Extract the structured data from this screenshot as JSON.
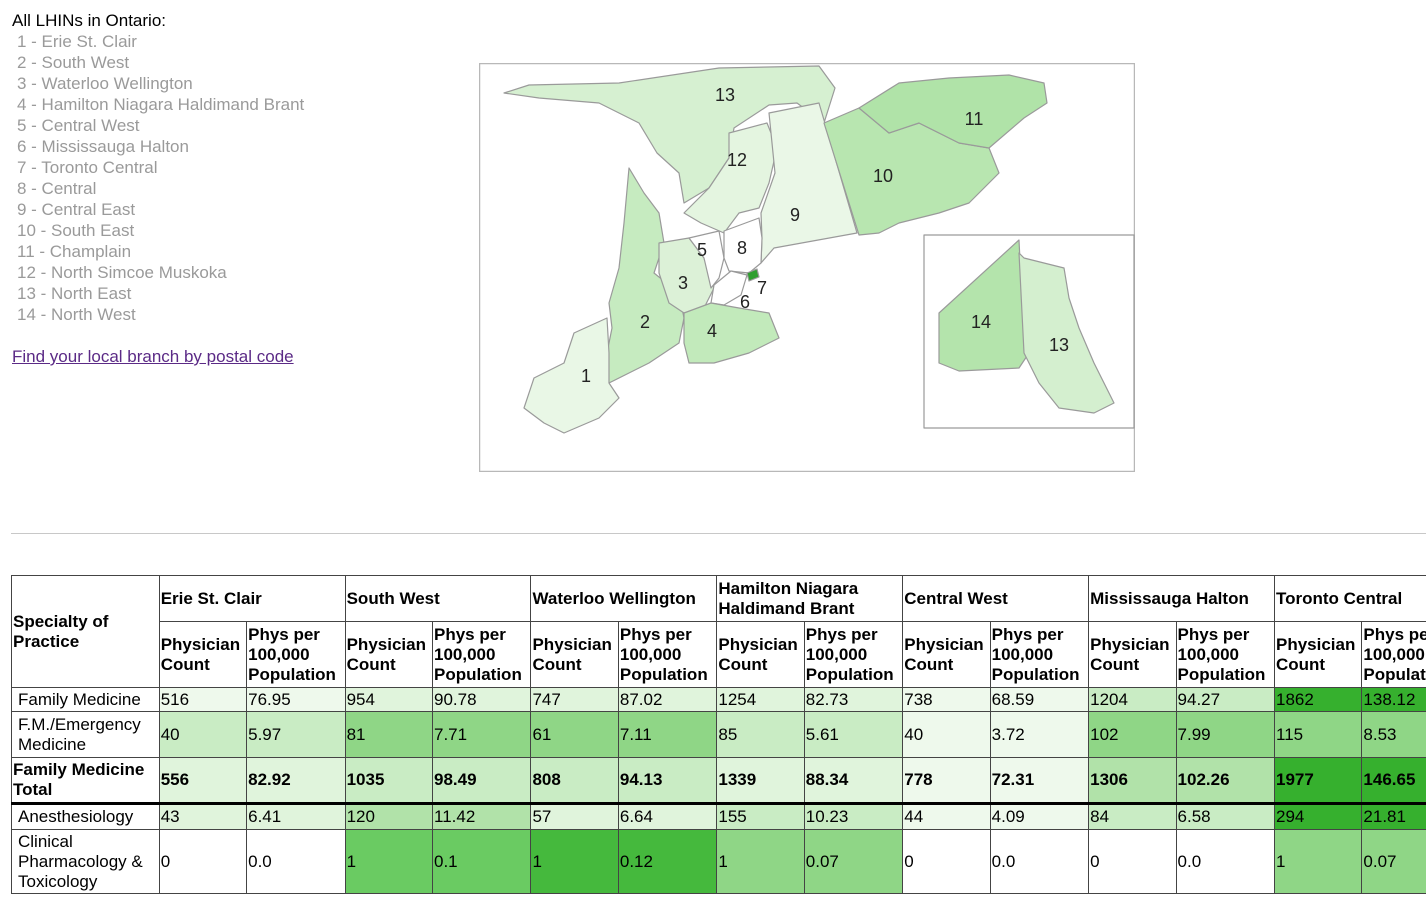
{
  "legend": {
    "title": "All LHINs in Ontario:",
    "items": [
      "1 - Erie St. Clair",
      "2 - South West",
      "3 - Waterloo Wellington",
      "4 - Hamilton Niagara Haldimand Brant",
      "5 - Central West",
      "6 - Mississauga Halton",
      "7 - Toronto Central",
      "8 - Central",
      "9 - Central East",
      "10 - South East",
      "11 - Champlain",
      "12 - North Simcoe Muskoka",
      "13 - North East",
      "14 - North West"
    ],
    "link": "Find your local branch by postal code"
  },
  "map": {
    "labels": [
      "13",
      "12",
      "11",
      "10",
      "9",
      "5",
      "8",
      "7",
      "3",
      "6",
      "2",
      "4",
      "1",
      "14",
      "13"
    ],
    "colors": {
      "light": "#e6f5e2",
      "mid": "#cbeec6",
      "dark": "#a9e0a1",
      "toronto": "#2f9e2f",
      "white": "#ffffff",
      "border": "#a0a0a0"
    }
  },
  "table": {
    "specialty_header": "Specialty of Practice",
    "sub_headers": {
      "count": "Physician Count",
      "rate": "Phys per 100,000 Population"
    },
    "regions": [
      "Erie St. Clair",
      "South West",
      "Waterloo Wellington",
      "Hamilton Niagara Haldimand Brant",
      "Central West",
      "Mississauga Halton",
      "Toronto Central"
    ],
    "rows": [
      {
        "specialty": "Family Medicine",
        "bold": false,
        "cells": [
          [
            "516",
            "76.95"
          ],
          [
            "954",
            "90.78"
          ],
          [
            "747",
            "87.02"
          ],
          [
            "1254",
            "82.73"
          ],
          [
            "738",
            "68.59"
          ],
          [
            "1204",
            "94.27"
          ],
          [
            "1862",
            "138.12"
          ]
        ]
      },
      {
        "specialty": "F.M./Emergency Medicine",
        "bold": false,
        "cells": [
          [
            "40",
            "5.97"
          ],
          [
            "81",
            "7.71"
          ],
          [
            "61",
            "7.11"
          ],
          [
            "85",
            "5.61"
          ],
          [
            "40",
            "3.72"
          ],
          [
            "102",
            "7.99"
          ],
          [
            "115",
            "8.53"
          ]
        ]
      },
      {
        "specialty": "Family Medicine Total",
        "bold": true,
        "cells": [
          [
            "556",
            "82.92"
          ],
          [
            "1035",
            "98.49"
          ],
          [
            "808",
            "94.13"
          ],
          [
            "1339",
            "88.34"
          ],
          [
            "778",
            "72.31"
          ],
          [
            "1306",
            "102.26"
          ],
          [
            "1977",
            "146.65"
          ]
        ]
      },
      {
        "specialty": "Anesthesiology",
        "bold": false,
        "cells": [
          [
            "43",
            "6.41"
          ],
          [
            "120",
            "11.42"
          ],
          [
            "57",
            "6.64"
          ],
          [
            "155",
            "10.23"
          ],
          [
            "44",
            "4.09"
          ],
          [
            "84",
            "6.58"
          ],
          [
            "294",
            "21.81"
          ]
        ]
      },
      {
        "specialty": "Clinical Pharmacology & Toxicology",
        "bold": false,
        "cells": [
          [
            "0",
            "0.0"
          ],
          [
            "1",
            "0.1"
          ],
          [
            "1",
            "0.12"
          ],
          [
            "1",
            "0.07"
          ],
          [
            "0",
            "0.0"
          ],
          [
            "0",
            "0.0"
          ],
          [
            "1",
            "0.07"
          ]
        ]
      }
    ],
    "shading": [
      [
        1,
        2,
        2,
        2,
        1,
        3,
        8
      ],
      [
        3,
        5,
        5,
        3,
        1,
        5,
        5
      ],
      [
        2,
        3,
        3,
        2,
        1,
        4,
        8
      ],
      [
        2,
        4,
        2,
        3,
        1,
        3,
        8
      ],
      [
        0,
        6,
        7,
        5,
        0,
        0,
        5
      ]
    ]
  }
}
